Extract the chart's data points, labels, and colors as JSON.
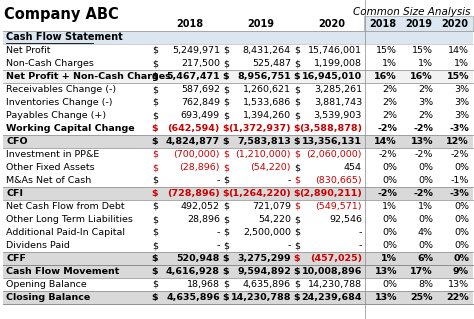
{
  "title": "Company ABC",
  "subtitle": "Common Size Analysis",
  "rows": [
    {
      "label": "Cash Flow Statement",
      "type": "section_header",
      "values": [],
      "pct": [],
      "neg": []
    },
    {
      "label": "Net Profit",
      "type": "normal",
      "values": [
        "5,249,971",
        "8,431,264",
        "15,746,001"
      ],
      "pct": [
        "15%",
        "15%",
        "14%"
      ],
      "neg": [
        false,
        false,
        false
      ]
    },
    {
      "label": "Non-Cash Charges",
      "type": "normal",
      "values": [
        "217,500",
        "525,487",
        "1,199,008"
      ],
      "pct": [
        "1%",
        "1%",
        "1%"
      ],
      "neg": [
        false,
        false,
        false
      ]
    },
    {
      "label": "Net Profit + Non-Cash Charges",
      "type": "subtotal",
      "values": [
        "5,467,471",
        "8,956,751",
        "16,945,010"
      ],
      "pct": [
        "16%",
        "16%",
        "15%"
      ],
      "neg": [
        false,
        false,
        false
      ]
    },
    {
      "label": "Receivables Change (-)",
      "type": "normal",
      "values": [
        "587,692",
        "1,260,621",
        "3,285,261"
      ],
      "pct": [
        "2%",
        "2%",
        "3%"
      ],
      "neg": [
        false,
        false,
        false
      ]
    },
    {
      "label": "Inventories Change (-)",
      "type": "normal",
      "values": [
        "762,849",
        "1,533,686",
        "3,881,743"
      ],
      "pct": [
        "2%",
        "3%",
        "3%"
      ],
      "neg": [
        false,
        false,
        false
      ]
    },
    {
      "label": "Payables Change (+)",
      "type": "normal",
      "values": [
        "693,499",
        "1,394,260",
        "3,539,903"
      ],
      "pct": [
        "2%",
        "2%",
        "3%"
      ],
      "neg": [
        false,
        false,
        false
      ]
    },
    {
      "label": "Working Capital Change",
      "type": "bold_red",
      "values": [
        "(642,594)",
        "(1,372,937)",
        "(3,588,878)"
      ],
      "pct": [
        "-2%",
        "-2%",
        "-3%"
      ],
      "neg": [
        true,
        true,
        true
      ]
    },
    {
      "label": "CFO",
      "type": "total",
      "values": [
        "4,824,877",
        "7,583,813",
        "13,356,131"
      ],
      "pct": [
        "14%",
        "13%",
        "12%"
      ],
      "neg": [
        false,
        false,
        false
      ]
    },
    {
      "label": "Investment in PP&E",
      "type": "normal_red",
      "values": [
        "(700,000)",
        "(1,210,000)",
        "(2,060,000)"
      ],
      "pct": [
        "-2%",
        "-2%",
        "-2%"
      ],
      "neg": [
        true,
        true,
        true
      ]
    },
    {
      "label": "Other Fixed Assets",
      "type": "normal_red",
      "values": [
        "(28,896)",
        "(54,220)",
        "454"
      ],
      "pct": [
        "0%",
        "0%",
        "0%"
      ],
      "neg": [
        true,
        true,
        false
      ]
    },
    {
      "label": "M&As Net of Cash",
      "type": "normal_red3",
      "values": [
        "-",
        "-",
        "(830,665)"
      ],
      "pct": [
        "0%",
        "0%",
        "-1%"
      ],
      "neg": [
        false,
        false,
        true
      ]
    },
    {
      "label": "CFI",
      "type": "total_red",
      "values": [
        "(728,896)",
        "(1,264,220)",
        "(2,890,211)"
      ],
      "pct": [
        "-2%",
        "-2%",
        "-3%"
      ],
      "neg": [
        true,
        true,
        true
      ]
    },
    {
      "label": "Net Cash Flow from Debt",
      "type": "normal",
      "values": [
        "492,052",
        "721,079",
        "(549,571)"
      ],
      "pct": [
        "1%",
        "1%",
        "0%"
      ],
      "neg": [
        false,
        false,
        true
      ]
    },
    {
      "label": "Other Long Term Liabilities",
      "type": "normal",
      "values": [
        "28,896",
        "54,220",
        "92,546"
      ],
      "pct": [
        "0%",
        "0%",
        "0%"
      ],
      "neg": [
        false,
        false,
        false
      ]
    },
    {
      "label": "Additional Paid-In Capital",
      "type": "normal",
      "values": [
        "-",
        "2,500,000",
        "-"
      ],
      "pct": [
        "0%",
        "4%",
        "0%"
      ],
      "neg": [
        false,
        false,
        false
      ]
    },
    {
      "label": "Dividens Paid",
      "type": "normal",
      "values": [
        "-",
        "-",
        "-"
      ],
      "pct": [
        "0%",
        "0%",
        "0%"
      ],
      "neg": [
        false,
        false,
        false
      ]
    },
    {
      "label": "CFF",
      "type": "total_cff",
      "values": [
        "520,948",
        "3,275,299",
        "(457,025)"
      ],
      "pct": [
        "1%",
        "6%",
        "0%"
      ],
      "neg": [
        false,
        false,
        true
      ]
    },
    {
      "label": "Cash Flow Movement",
      "type": "bold_total",
      "values": [
        "4,616,928",
        "9,594,892",
        "10,008,896"
      ],
      "pct": [
        "13%",
        "17%",
        "9%"
      ],
      "neg": [
        false,
        false,
        false
      ]
    },
    {
      "label": "Opening Balance",
      "type": "normal",
      "values": [
        "18,968",
        "4,635,896",
        "14,230,788"
      ],
      "pct": [
        "0%",
        "8%",
        "13%"
      ],
      "neg": [
        false,
        false,
        false
      ]
    },
    {
      "label": "Closing Balance",
      "type": "bold_total2",
      "values": [
        "4,635,896",
        "14,230,788",
        "24,239,684"
      ],
      "pct": [
        "13%",
        "25%",
        "22%"
      ],
      "neg": [
        false,
        false,
        false
      ]
    }
  ],
  "bg_header": "#dce6f1",
  "bg_section": "#dce6f1",
  "bg_subtotal": "#f2f2f2",
  "bg_total": "#d9d9d9",
  "bg_white": "#ffffff",
  "color_red": "#cc0000",
  "color_black": "#000000",
  "color_gray": "#595959",
  "years": [
    "2018",
    "2019",
    "2020"
  ]
}
